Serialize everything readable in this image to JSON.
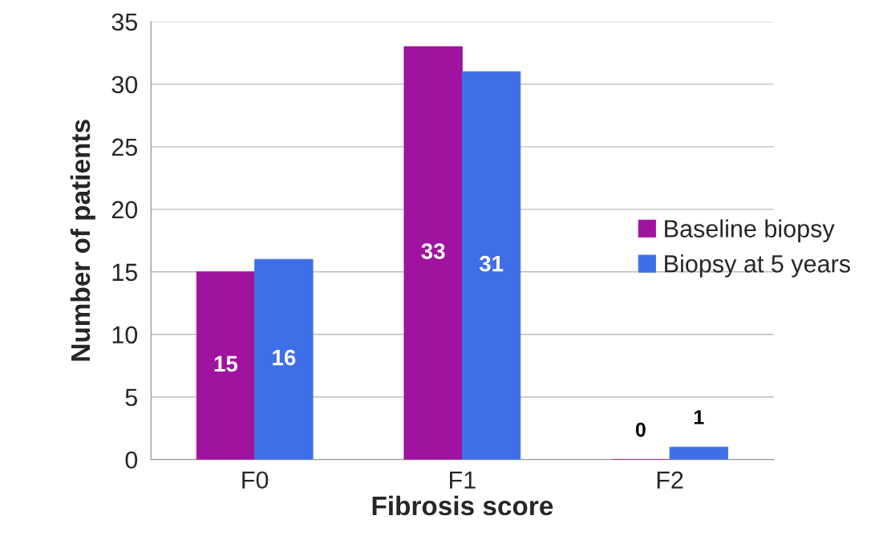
{
  "chart_data": {
    "type": "bar",
    "xlabel": "Fibrosis score",
    "ylabel": "Number of patients",
    "categories": [
      "F0",
      "F1",
      "F2"
    ],
    "series": [
      {
        "name": "Baseline biopsy",
        "color": "#a0139e",
        "values": [
          15,
          33,
          0
        ]
      },
      {
        "name": "Biopsy at 5 years",
        "color": "#3f6fe6",
        "values": [
          16,
          31,
          1
        ]
      }
    ],
    "ylim": [
      0,
      35
    ],
    "yticks": [
      0,
      5,
      10,
      15,
      20,
      25,
      30,
      35
    ],
    "grid": "y",
    "legend": "right",
    "data_labels": true
  }
}
